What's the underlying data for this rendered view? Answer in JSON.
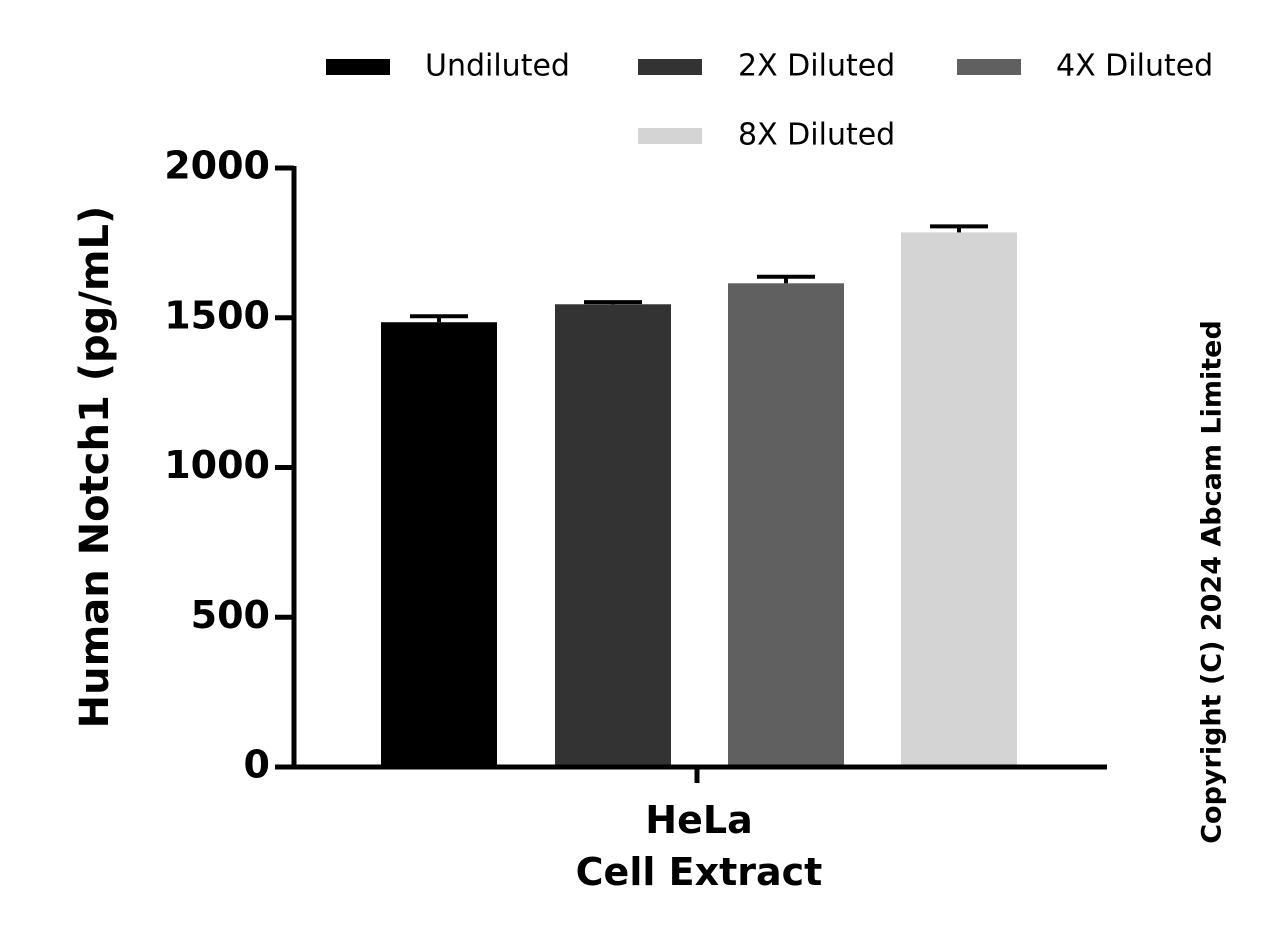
{
  "chart_data": {
    "type": "bar",
    "categories": [
      "HeLa\nCell Extract"
    ],
    "category_lines": [
      "HeLa",
      "Cell Extract"
    ],
    "series": [
      {
        "name": "Undiluted",
        "values": [
          1485
        ],
        "error": [
          20
        ],
        "color": "#000000"
      },
      {
        "name": "2X Diluted",
        "values": [
          1545
        ],
        "error": [
          7
        ],
        "color": "#333333"
      },
      {
        "name": "4X Diluted",
        "values": [
          1615
        ],
        "error": [
          22
        ],
        "color": "#606060"
      },
      {
        "name": "8X Diluted",
        "values": [
          1785
        ],
        "error": [
          20
        ],
        "color": "#d4d4d4"
      }
    ],
    "ylabel": "Human Notch1 (pg/mL)",
    "ylim": [
      0,
      2000
    ],
    "yticks": [
      "0",
      "500",
      "1000",
      "1500",
      "2000"
    ],
    "grid": false,
    "legend_position": "top"
  },
  "copyright": "Copyright (C) 2024 Abcam Limited"
}
